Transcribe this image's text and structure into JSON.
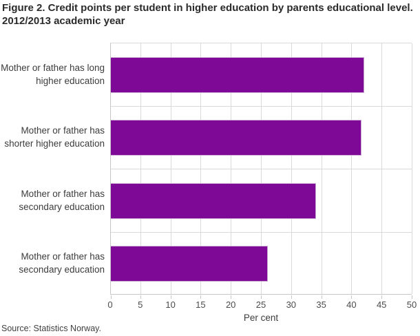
{
  "title": "Figure 2. Credit points per student in higher education by parents educational level. 2012/2013 academic year",
  "source": "Source: Statistics Norway.",
  "chart_data": {
    "type": "bar",
    "orientation": "horizontal",
    "title": "Figure 2. Credit points per student in higher education by parents educational level. 2012/2013 academic year",
    "categories": [
      "Mother or father has long higher education",
      "Mother or father has shorter higher education",
      "Mother or father has secondary education",
      "Mother or father has secondary education"
    ],
    "values": [
      42,
      41.5,
      34,
      26
    ],
    "xlabel": "Per cent",
    "ylabel": "",
    "xlim": [
      0,
      50
    ],
    "xticks": [
      0,
      5,
      10,
      15,
      20,
      25,
      30,
      35,
      40,
      45,
      50
    ],
    "grid": true,
    "legend": "none",
    "bar_color": "#7d0996",
    "grid_color": "#d9d9d9",
    "axis_color": "#c6c6c6"
  }
}
